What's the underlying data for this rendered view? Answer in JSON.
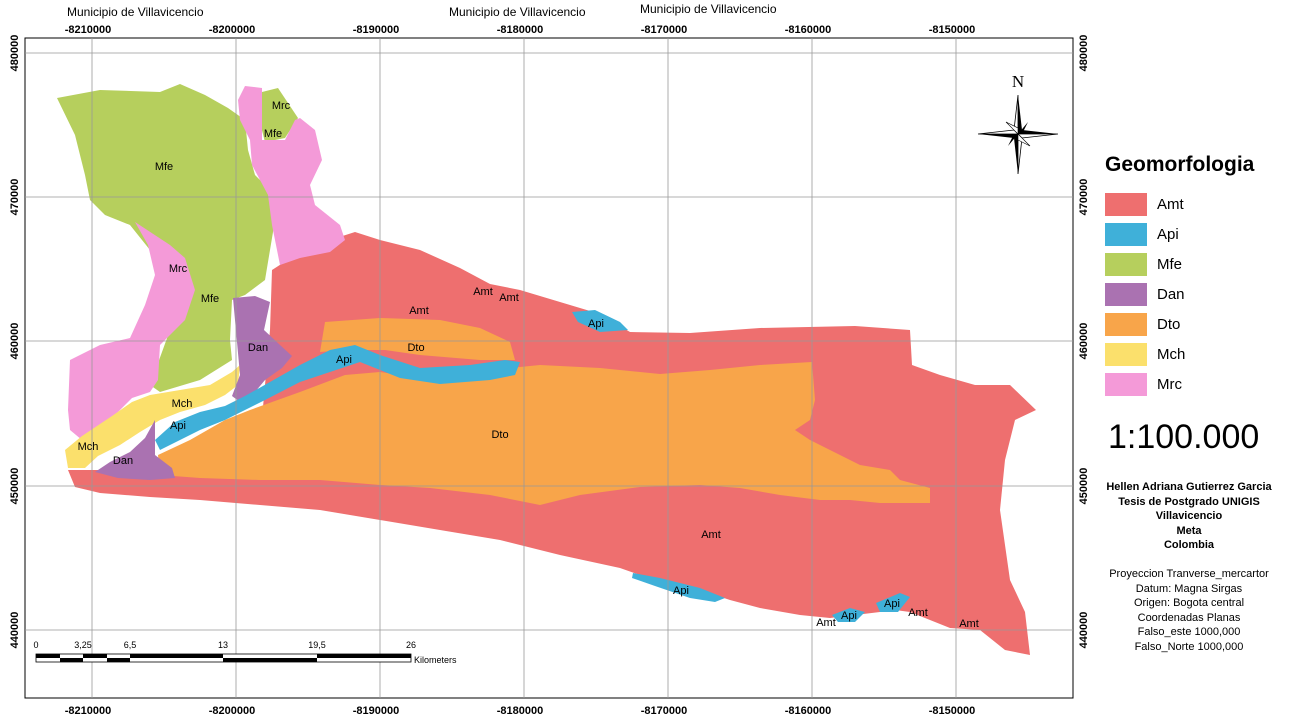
{
  "header": {
    "municipio_left": "Municipio de Villavicencio",
    "municipio_mid": "Municipio de Villavicencio",
    "municipio_right": "Municipio de Villavicencio"
  },
  "axes": {
    "x_ticks": [
      "-8210000",
      "-8200000",
      "-8190000",
      "-8180000",
      "-8170000",
      "-8160000",
      "-8150000"
    ],
    "y_ticks": [
      "480000",
      "470000",
      "460000",
      "450000",
      "440000"
    ]
  },
  "map_labels": [
    {
      "id": "mrc-1",
      "text": "Mrc"
    },
    {
      "id": "mfe-1",
      "text": "Mfe"
    },
    {
      "id": "mfe-2",
      "text": "Mfe"
    },
    {
      "id": "mrc-2",
      "text": "Mrc"
    },
    {
      "id": "mfe-3",
      "text": "Mfe"
    },
    {
      "id": "dan-1",
      "text": "Dan"
    },
    {
      "id": "amt-1",
      "text": "Amt"
    },
    {
      "id": "amt-2",
      "text": "Amt"
    },
    {
      "id": "amt-3",
      "text": "Amt"
    },
    {
      "id": "api-1",
      "text": "Api"
    },
    {
      "id": "dto-1",
      "text": "Dto"
    },
    {
      "id": "api-2",
      "text": "Api"
    },
    {
      "id": "mch-1",
      "text": "Mch"
    },
    {
      "id": "api-3",
      "text": "Api"
    },
    {
      "id": "dto-2",
      "text": "Dto"
    },
    {
      "id": "mch-2",
      "text": "Mch"
    },
    {
      "id": "dan-2",
      "text": "Dan"
    },
    {
      "id": "amt-4",
      "text": "Amt"
    },
    {
      "id": "api-4",
      "text": "Api"
    },
    {
      "id": "api-5",
      "text": "Api"
    },
    {
      "id": "api-6",
      "text": "Api"
    },
    {
      "id": "amt-5",
      "text": "Amt"
    },
    {
      "id": "amt-6",
      "text": "Amt"
    },
    {
      "id": "amt-7",
      "text": "Amt"
    }
  ],
  "north_arrow": {
    "letter": "N",
    "icon": "north-arrow-icon"
  },
  "scale_bar": {
    "ticks": [
      "0",
      "3,25",
      "6,5",
      "13",
      "19,5",
      "26"
    ],
    "unit": "Kilometers"
  },
  "legend": {
    "title": "Geomorfologia",
    "items": [
      {
        "code": "Amt",
        "color": "#ee6f6f"
      },
      {
        "code": "Api",
        "color": "#3fb0d9"
      },
      {
        "code": "Mfe",
        "color": "#b6cf5d"
      },
      {
        "code": "Dan",
        "color": "#aa72b1"
      },
      {
        "code": "Dto",
        "color": "#f8a54a"
      },
      {
        "code": "Mch",
        "color": "#fbe06c"
      },
      {
        "code": "Mrc",
        "color": "#f49ad8"
      }
    ]
  },
  "scale_text": "1:100.000",
  "author": {
    "name": "Hellen Adriana Gutierrez Garcia",
    "thesis": "Tesis de Postgrado UNIGIS",
    "city": "Villavicencio",
    "department": "Meta",
    "country": "Colombia"
  },
  "projection": {
    "line1": "Proyeccion Tranverse_mercartor",
    "line2": "Datum: Magna Sirgas",
    "line3": "Origen: Bogota central",
    "line4": "Coordenadas Planas",
    "line5": "Falso_este 1000,000",
    "line6": "Falso_Norte 1000,000"
  }
}
